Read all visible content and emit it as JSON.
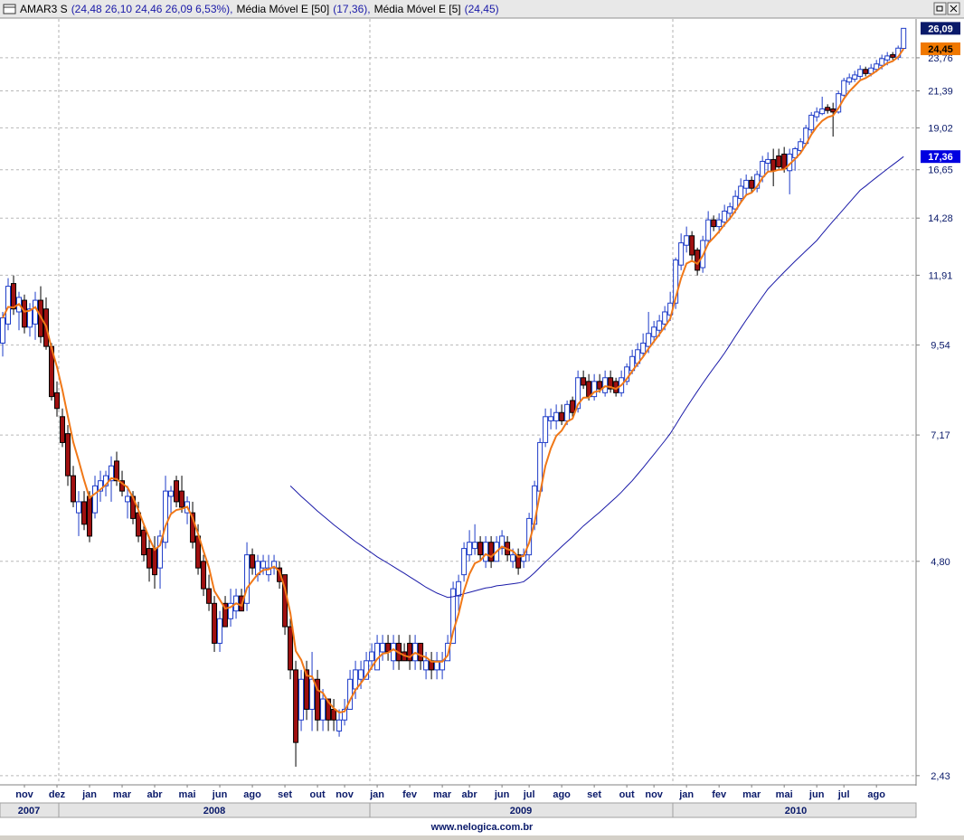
{
  "chart_data": {
    "type": "candlestick",
    "title": "AMAR3 S",
    "ohlc_label": "(24,48  26,10  24,46  26,09  6,53%),",
    "log_scale": true,
    "grid": true,
    "up_color": "#1e3cc8",
    "down_color": "#a01010",
    "ylim": [
      2.36,
      26.8
    ],
    "yticks": [
      {
        "value": 2.43,
        "label": "2,43"
      },
      {
        "value": 4.8,
        "label": "4,80"
      },
      {
        "value": 7.17,
        "label": "7,17"
      },
      {
        "value": 9.54,
        "label": "9,54"
      },
      {
        "value": 11.91,
        "label": "11,91"
      },
      {
        "value": 14.28,
        "label": "14,28"
      },
      {
        "value": 16.65,
        "label": "16,65"
      },
      {
        "value": 19.02,
        "label": "19,02"
      },
      {
        "value": 21.39,
        "label": "21,39"
      },
      {
        "value": 23.76,
        "label": "23,76"
      }
    ],
    "xlim": [
      -0.5,
      168.3
    ],
    "xticks": [
      {
        "value": 4,
        "label": "nov"
      },
      {
        "value": 10,
        "label": "dez"
      },
      {
        "value": 16,
        "label": "jan"
      },
      {
        "value": 22,
        "label": "mar"
      },
      {
        "value": 28,
        "label": "abr"
      },
      {
        "value": 34,
        "label": "mai"
      },
      {
        "value": 40,
        "label": "jun"
      },
      {
        "value": 46,
        "label": "ago"
      },
      {
        "value": 52,
        "label": "set"
      },
      {
        "value": 58,
        "label": "out"
      },
      {
        "value": 63,
        "label": "nov"
      },
      {
        "value": 69,
        "label": "jan"
      },
      {
        "value": 75,
        "label": "fev"
      },
      {
        "value": 81,
        "label": "mar"
      },
      {
        "value": 86,
        "label": "abr"
      },
      {
        "value": 92,
        "label": "jun"
      },
      {
        "value": 97,
        "label": "jul"
      },
      {
        "value": 103,
        "label": "ago"
      },
      {
        "value": 109,
        "label": "set"
      },
      {
        "value": 115,
        "label": "out"
      },
      {
        "value": 120,
        "label": "nov"
      },
      {
        "value": 126,
        "label": "jan"
      },
      {
        "value": 132,
        "label": "fev"
      },
      {
        "value": 138,
        "label": "mar"
      },
      {
        "value": 144,
        "label": "mai"
      },
      {
        "value": 150,
        "label": "jun"
      },
      {
        "value": 155,
        "label": "jul"
      },
      {
        "value": 161,
        "label": "ago"
      }
    ],
    "years": [
      "2007",
      "2008",
      "2009",
      "2010"
    ],
    "open": [
      9.6,
      10.2,
      11.6,
      10.6,
      11.0,
      10.1,
      10.2,
      11.0,
      10.7,
      9.5,
      8.2,
      7.6,
      7.2,
      6.3,
      5.6,
      5.8,
      5.9,
      5.6,
      6.0,
      6.1,
      6.2,
      6.6,
      6.2,
      5.8,
      5.9,
      5.6,
      5.3,
      5.0,
      5.0,
      4.7,
      5.1,
      5.9,
      6.2,
      6.0,
      5.6,
      5.6,
      5.2,
      4.8,
      4.4,
      4.2,
      3.7,
      4.2,
      4.0,
      4.1,
      4.3,
      4.2,
      4.9,
      4.6,
      4.7,
      4.6,
      4.7,
      4.7,
      4.6,
      3.9,
      3.4,
      2.9,
      3.4,
      3.0,
      3.3,
      2.9,
      3.1,
      3.0,
      2.8,
      2.9,
      3.0,
      3.2,
      3.3,
      3.3,
      3.5,
      3.4,
      3.6,
      3.7,
      3.5,
      3.7,
      3.6,
      3.7,
      3.5,
      3.7,
      3.4,
      3.5,
      3.4,
      3.4,
      3.5,
      3.7,
      4.3,
      4.6,
      4.9,
      5.0,
      5.1,
      4.8,
      5.1,
      4.8,
      5.0,
      5.1,
      4.8,
      4.9,
      4.8,
      4.9,
      5.4,
      6.0,
      7.0,
      7.5,
      7.5,
      7.7,
      7.5,
      8.0,
      7.8,
      8.6,
      8.5,
      8.1,
      8.5,
      8.2,
      8.6,
      8.5,
      8.2,
      8.5,
      8.8,
      9.0,
      9.3,
      9.5,
      9.8,
      10.0,
      10.2,
      10.5,
      10.9,
      12.3,
      13.1,
      13.5,
      12.9,
      12.2,
      13.3,
      14.2,
      13.9,
      14.1,
      14.5,
      14.7,
      15.2,
      15.7,
      16.1,
      15.7,
      16.3,
      17.0,
      17.2,
      17.4,
      17.5,
      16.6,
      17.3,
      17.7,
      18.1,
      18.9,
      19.7,
      19.9,
      20.3,
      20.2,
      20.0,
      21.1,
      22.0,
      22.2,
      22.4,
      22.9,
      22.6,
      22.9,
      23.2,
      23.6,
      24.0,
      23.8,
      24.48
    ],
    "high": [
      10.6,
      11.8,
      11.9,
      11.3,
      11.2,
      10.9,
      11.3,
      11.5,
      11.1,
      9.6,
      8.5,
      7.8,
      7.4,
      6.5,
      6.0,
      6.0,
      6.0,
      6.3,
      6.4,
      6.4,
      6.7,
      6.8,
      6.4,
      6.1,
      6.0,
      5.8,
      5.4,
      5.2,
      5.2,
      5.3,
      6.3,
      6.1,
      6.3,
      6.3,
      5.9,
      5.8,
      5.4,
      4.9,
      4.6,
      4.3,
      4.1,
      4.3,
      4.4,
      4.4,
      4.4,
      5.1,
      5.0,
      4.9,
      4.9,
      4.9,
      4.9,
      4.8,
      4.6,
      4.0,
      3.5,
      3.4,
      3.5,
      3.6,
      3.4,
      3.2,
      3.1,
      3.1,
      3.0,
      3.1,
      3.4,
      3.5,
      3.5,
      3.6,
      3.7,
      3.8,
      3.8,
      3.8,
      3.8,
      3.8,
      3.7,
      3.8,
      3.8,
      3.7,
      3.6,
      3.6,
      3.6,
      3.6,
      3.8,
      4.5,
      4.6,
      5.1,
      5.3,
      5.4,
      5.2,
      5.2,
      5.2,
      5.2,
      5.3,
      5.2,
      5.0,
      5.0,
      5.0,
      5.6,
      6.2,
      7.1,
      7.8,
      7.8,
      7.9,
      7.9,
      8.0,
      8.1,
      8.8,
      8.8,
      8.7,
      8.7,
      8.7,
      8.8,
      8.8,
      8.6,
      8.8,
      9.0,
      9.4,
      9.6,
      9.9,
      10.6,
      10.3,
      10.5,
      10.8,
      11.3,
      12.6,
      13.6,
      13.9,
      13.7,
      13.0,
      13.5,
      14.6,
      14.4,
      14.5,
      14.9,
      15.0,
      15.6,
      16.2,
      16.4,
      16.3,
      16.6,
      17.4,
      17.6,
      17.8,
      17.8,
      17.9,
      17.8,
      17.9,
      18.4,
      19.2,
      20.0,
      20.3,
      21.0,
      20.5,
      20.6,
      21.4,
      22.3,
      22.6,
      22.8,
      23.2,
      23.1,
      23.3,
      23.6,
      24.0,
      24.2,
      24.2,
      24.7,
      26.1
    ],
    "low": [
      9.2,
      10.0,
      10.5,
      10.0,
      9.9,
      9.8,
      9.7,
      9.6,
      9.4,
      8.0,
      7.6,
      6.9,
      6.1,
      5.7,
      5.2,
      5.3,
      5.1,
      5.5,
      5.8,
      5.9,
      5.8,
      6.1,
      5.9,
      5.5,
      5.4,
      5.1,
      4.8,
      4.5,
      4.4,
      4.4,
      5.0,
      5.6,
      5.7,
      5.6,
      5.4,
      5.0,
      4.6,
      4.3,
      4.1,
      3.6,
      3.6,
      3.9,
      3.9,
      4.0,
      4.1,
      4.1,
      4.6,
      4.5,
      4.6,
      4.5,
      4.6,
      4.4,
      3.8,
      3.3,
      2.5,
      2.8,
      2.9,
      2.8,
      2.8,
      2.8,
      2.8,
      2.8,
      2.75,
      2.85,
      3.0,
      3.1,
      3.2,
      3.3,
      3.4,
      3.4,
      3.5,
      3.5,
      3.4,
      3.4,
      3.5,
      3.4,
      3.4,
      3.4,
      3.3,
      3.3,
      3.3,
      3.3,
      3.5,
      3.7,
      4.1,
      4.5,
      4.8,
      4.9,
      4.8,
      4.7,
      4.7,
      4.8,
      4.9,
      4.8,
      4.7,
      4.6,
      4.7,
      4.8,
      5.3,
      5.9,
      6.9,
      7.3,
      7.3,
      7.4,
      7.4,
      7.6,
      7.7,
      8.3,
      8.0,
      8.0,
      8.2,
      8.1,
      8.2,
      8.1,
      8.1,
      8.4,
      8.7,
      8.9,
      9.2,
      9.3,
      9.6,
      9.8,
      10.0,
      10.3,
      10.7,
      12.1,
      12.8,
      12.5,
      11.9,
      12.0,
      13.1,
      13.7,
      13.6,
      13.9,
      14.2,
      14.5,
      15.0,
      15.4,
      15.5,
      15.5,
      16.0,
      16.5,
      15.8,
      16.7,
      16.5,
      15.4,
      16.6,
      17.5,
      18.0,
      18.7,
      19.4,
      19.8,
      19.9,
      18.5,
      19.9,
      21.0,
      21.8,
      22.0,
      22.2,
      22.4,
      22.4,
      22.7,
      22.9,
      23.2,
      23.6,
      23.6,
      24.46
    ],
    "close": [
      10.4,
      11.5,
      10.7,
      11.1,
      10.1,
      10.7,
      11.0,
      9.8,
      9.5,
      8.1,
      7.8,
      7.0,
      6.3,
      5.8,
      5.8,
      5.4,
      5.2,
      6.1,
      6.2,
      6.3,
      6.5,
      6.2,
      6.0,
      5.9,
      5.5,
      5.2,
      4.9,
      4.7,
      4.6,
      5.2,
      6.0,
      6.0,
      5.8,
      5.7,
      5.8,
      5.1,
      4.7,
      4.4,
      4.2,
      3.7,
      4.0,
      3.9,
      4.2,
      4.3,
      4.1,
      4.9,
      4.7,
      4.8,
      4.8,
      4.7,
      4.8,
      4.5,
      3.9,
      3.4,
      2.7,
      3.3,
      3.0,
      3.3,
      2.9,
      3.1,
      2.9,
      2.9,
      2.9,
      3.0,
      3.3,
      3.4,
      3.4,
      3.5,
      3.6,
      3.7,
      3.7,
      3.6,
      3.7,
      3.5,
      3.5,
      3.5,
      3.7,
      3.5,
      3.5,
      3.4,
      3.5,
      3.5,
      3.7,
      4.4,
      4.5,
      5.0,
      5.1,
      5.1,
      4.9,
      5.1,
      4.8,
      5.1,
      5.2,
      4.9,
      4.9,
      4.7,
      4.9,
      5.5,
      6.1,
      7.0,
      7.6,
      7.6,
      7.7,
      7.5,
      7.9,
      7.7,
      8.6,
      8.4,
      8.1,
      8.5,
      8.3,
      8.6,
      8.3,
      8.2,
      8.6,
      8.9,
      9.2,
      9.4,
      9.6,
      9.9,
      10.1,
      10.3,
      10.6,
      10.9,
      12.5,
      13.2,
      13.5,
      12.7,
      12.1,
      13.3,
      14.2,
      13.9,
      14.2,
      14.6,
      14.8,
      15.3,
      15.8,
      16.1,
      15.7,
      16.4,
      17.1,
      17.2,
      16.6,
      16.8,
      16.7,
      17.5,
      17.8,
      18.2,
      19.0,
      19.8,
      20.0,
      20.2,
      20.1,
      20.0,
      21.2,
      22.1,
      22.3,
      22.5,
      22.9,
      22.6,
      23.0,
      23.3,
      23.7,
      23.9,
      23.8,
      24.5,
      26.09
    ],
    "series": [
      {
        "name": "Média Móvel E [50]",
        "legend_label": "(17,36),",
        "color": "#1a1aa8",
        "values": [
          null,
          null,
          null,
          null,
          null,
          null,
          null,
          null,
          null,
          null,
          null,
          null,
          null,
          null,
          null,
          null,
          null,
          null,
          null,
          null,
          null,
          null,
          null,
          null,
          null,
          null,
          null,
          null,
          null,
          null,
          null,
          null,
          null,
          null,
          null,
          null,
          null,
          null,
          null,
          null,
          null,
          null,
          null,
          null,
          null,
          null,
          null,
          null,
          null,
          null,
          null,
          null,
          null,
          6.1,
          6.0,
          5.9,
          5.81,
          5.72,
          5.63,
          5.55,
          5.47,
          5.39,
          5.32,
          5.25,
          5.18,
          5.11,
          5.05,
          4.99,
          4.93,
          4.87,
          4.82,
          4.77,
          4.72,
          4.67,
          4.62,
          4.57,
          4.52,
          4.47,
          4.42,
          4.38,
          4.34,
          4.31,
          4.28,
          4.29,
          4.31,
          4.33,
          4.35,
          4.37,
          4.39,
          4.41,
          4.42,
          4.44,
          4.45,
          4.46,
          4.47,
          4.48,
          4.5,
          4.56,
          4.63,
          4.71,
          4.79,
          4.87,
          4.95,
          5.03,
          5.11,
          5.19,
          5.28,
          5.37,
          5.45,
          5.53,
          5.61,
          5.7,
          5.79,
          5.88,
          5.98,
          6.09,
          6.2,
          6.33,
          6.46,
          6.6,
          6.74,
          6.89,
          7.04,
          7.2,
          7.4,
          7.61,
          7.82,
          8.03,
          8.24,
          8.45,
          8.66,
          8.87,
          9.08,
          9.3,
          9.55,
          9.81,
          10.07,
          10.33,
          10.59,
          10.86,
          11.13,
          11.4,
          11.61,
          11.82,
          12.03,
          12.24,
          12.45,
          12.66,
          12.87,
          13.08,
          13.3,
          13.58,
          13.86,
          14.14,
          14.42,
          14.71,
          15.0,
          15.3,
          15.6,
          15.81,
          16.03,
          16.25,
          16.47,
          16.69,
          16.91,
          17.13,
          17.36
        ]
      },
      {
        "name": "Média Móvel E [5]",
        "legend_label": "(24,45)",
        "color": "#f07818",
        "values": [
          10.4,
          10.77,
          10.75,
          10.87,
          10.61,
          10.64,
          10.76,
          10.44,
          10.13,
          9.45,
          8.9,
          8.27,
          7.61,
          7.01,
          6.61,
          6.21,
          5.87,
          5.95,
          6.03,
          6.12,
          6.25,
          6.23,
          6.15,
          6.07,
          5.88,
          5.65,
          5.4,
          5.17,
          4.98,
          5.05,
          5.37,
          5.58,
          5.65,
          5.67,
          5.71,
          5.51,
          5.24,
          4.96,
          4.71,
          4.37,
          4.25,
          4.13,
          4.15,
          4.2,
          4.17,
          4.41,
          4.51,
          4.61,
          4.67,
          4.68,
          4.72,
          4.65,
          4.4,
          4.07,
          3.61,
          3.51,
          3.34,
          3.33,
          3.19,
          3.16,
          3.07,
          3.01,
          2.97,
          2.98,
          3.09,
          3.19,
          3.26,
          3.34,
          3.43,
          3.52,
          3.58,
          3.59,
          3.63,
          3.59,
          3.56,
          3.54,
          3.59,
          3.56,
          3.54,
          3.49,
          3.49,
          3.49,
          3.56,
          3.84,
          4.06,
          4.37,
          4.61,
          4.77,
          4.81,
          4.91,
          4.87,
          4.95,
          5.03,
          4.99,
          4.96,
          4.87,
          4.88,
          5.09,
          5.43,
          5.95,
          6.5,
          6.87,
          7.15,
          7.27,
          7.48,
          7.55,
          7.9,
          8.07,
          8.08,
          8.22,
          8.25,
          8.37,
          8.35,
          8.3,
          8.4,
          8.57,
          8.78,
          8.99,
          9.19,
          9.43,
          9.65,
          9.87,
          10.11,
          10.37,
          11.08,
          11.79,
          12.36,
          12.47,
          12.35,
          12.67,
          13.18,
          13.42,
          13.68,
          13.99,
          14.26,
          14.61,
          15.01,
          15.37,
          15.48,
          15.79,
          16.23,
          16.55,
          16.57,
          16.65,
          16.67,
          16.95,
          17.23,
          17.55,
          18.03,
          18.62,
          19.08,
          19.45,
          19.67,
          19.78,
          20.25,
          20.87,
          21.35,
          21.73,
          22.12,
          22.28,
          22.52,
          22.78,
          23.09,
          23.36,
          23.51,
          23.84,
          24.45
        ]
      }
    ],
    "price_tags": [
      {
        "value": 26.09,
        "label": "26,09",
        "color": "#0a1a6a",
        "text_color": "#ffffff"
      },
      {
        "value": 24.45,
        "label": "24,45",
        "color": "#f07800",
        "text_color": "#000000"
      },
      {
        "value": 17.36,
        "label": "17,36",
        "color": "#0000e0",
        "text_color": "#ffffff"
      }
    ]
  },
  "footer": "www.nelogica.com.br"
}
